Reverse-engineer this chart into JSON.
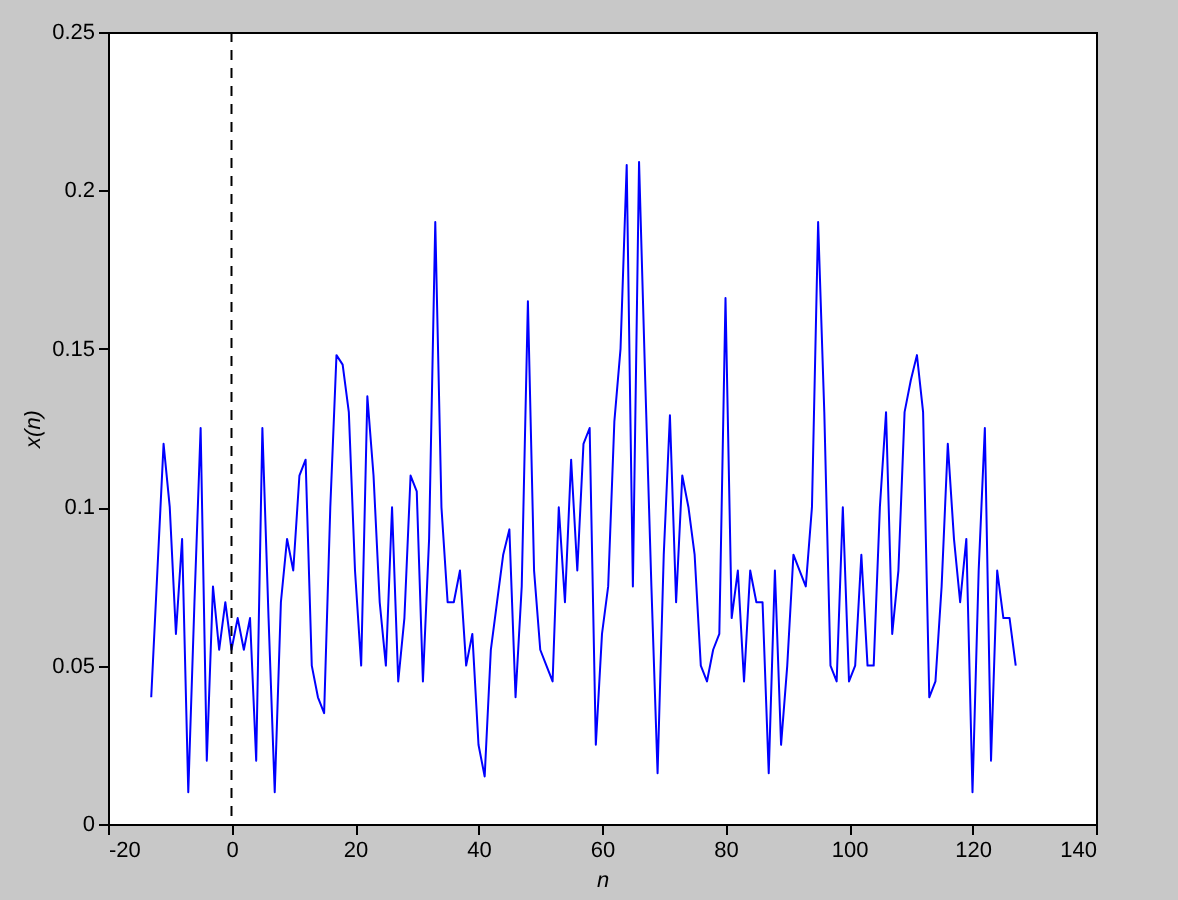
{
  "chart_data": {
    "type": "line",
    "xlabel": "n",
    "ylabel": "x(n)",
    "x": [
      -13,
      -12,
      -11,
      -10,
      -9,
      -8,
      -7,
      -6,
      -5,
      -4,
      -3,
      -2,
      -1,
      0,
      1,
      2,
      3,
      4,
      5,
      6,
      7,
      8,
      9,
      10,
      11,
      12,
      13,
      14,
      15,
      16,
      17,
      18,
      19,
      20,
      21,
      22,
      23,
      24,
      25,
      26,
      27,
      28,
      29,
      30,
      31,
      32,
      33,
      34,
      35,
      36,
      37,
      38,
      39,
      40,
      41,
      42,
      43,
      44,
      45,
      46,
      47,
      48,
      49,
      50,
      51,
      52,
      53,
      54,
      55,
      56,
      57,
      58,
      59,
      60,
      61,
      62,
      63,
      64,
      65,
      66,
      67,
      68,
      69,
      70,
      71,
      72,
      73,
      74,
      75,
      76,
      77,
      78,
      79,
      80,
      81,
      82,
      83,
      84,
      85,
      86,
      87,
      88,
      89,
      90,
      91,
      92,
      93,
      94,
      95,
      96,
      97,
      98,
      99,
      100,
      101,
      102,
      103,
      104,
      105,
      106,
      107,
      108,
      109,
      110,
      111,
      112,
      113,
      114,
      115,
      116,
      117,
      118,
      119,
      120,
      121,
      122,
      123,
      124,
      125,
      126,
      127
    ],
    "series": [
      {
        "color": "#0000ff",
        "values": [
          0.04,
          0.08,
          0.12,
          0.1,
          0.06,
          0.09,
          0.01,
          0.07,
          0.125,
          0.02,
          0.075,
          0.055,
          0.07,
          0.055,
          0.065,
          0.055,
          0.065,
          0.02,
          0.125,
          0.065,
          0.01,
          0.07,
          0.09,
          0.08,
          0.11,
          0.115,
          0.05,
          0.04,
          0.035,
          0.1,
          0.148,
          0.145,
          0.13,
          0.08,
          0.05,
          0.135,
          0.11,
          0.07,
          0.05,
          0.1,
          0.045,
          0.065,
          0.11,
          0.105,
          0.045,
          0.09,
          0.19,
          0.1,
          0.07,
          0.07,
          0.08,
          0.05,
          0.06,
          0.025,
          0.015,
          0.055,
          0.07,
          0.085,
          0.093,
          0.04,
          0.075,
          0.165,
          0.08,
          0.055,
          0.05,
          0.045,
          0.1,
          0.07,
          0.115,
          0.08,
          0.12,
          0.125,
          0.025,
          0.06,
          0.075,
          0.127,
          0.15,
          0.208,
          0.075,
          0.209,
          0.14,
          0.075,
          0.016,
          0.085,
          0.129,
          0.07,
          0.11,
          0.1,
          0.085,
          0.05,
          0.045,
          0.055,
          0.06,
          0.166,
          0.065,
          0.08,
          0.045,
          0.08,
          0.07,
          0.07,
          0.016,
          0.08,
          0.025,
          0.05,
          0.085,
          0.08,
          0.075,
          0.1,
          0.19,
          0.13,
          0.05,
          0.045,
          0.1,
          0.045,
          0.05,
          0.085,
          0.05,
          0.05,
          0.1,
          0.13,
          0.06,
          0.08,
          0.13,
          0.14,
          0.148,
          0.13,
          0.04,
          0.045,
          0.075,
          0.12,
          0.09,
          0.07,
          0.09,
          0.01,
          0.08,
          0.125,
          0.02,
          0.08,
          0.065,
          0.065,
          0.05
        ]
      }
    ],
    "xlim": [
      -20,
      140
    ],
    "xticks": [
      -20,
      0,
      20,
      40,
      60,
      80,
      100,
      120,
      140
    ],
    "ylim": [
      0,
      0.25
    ],
    "yticks": [
      0,
      0.05,
      0.1,
      0.15,
      0.2,
      0.25
    ],
    "ref_lines": [
      {
        "axis": "x",
        "value": 0,
        "color": "#000000",
        "line_style": "dashed"
      }
    ],
    "grid": false,
    "marker": "none",
    "line_style": "solid"
  }
}
